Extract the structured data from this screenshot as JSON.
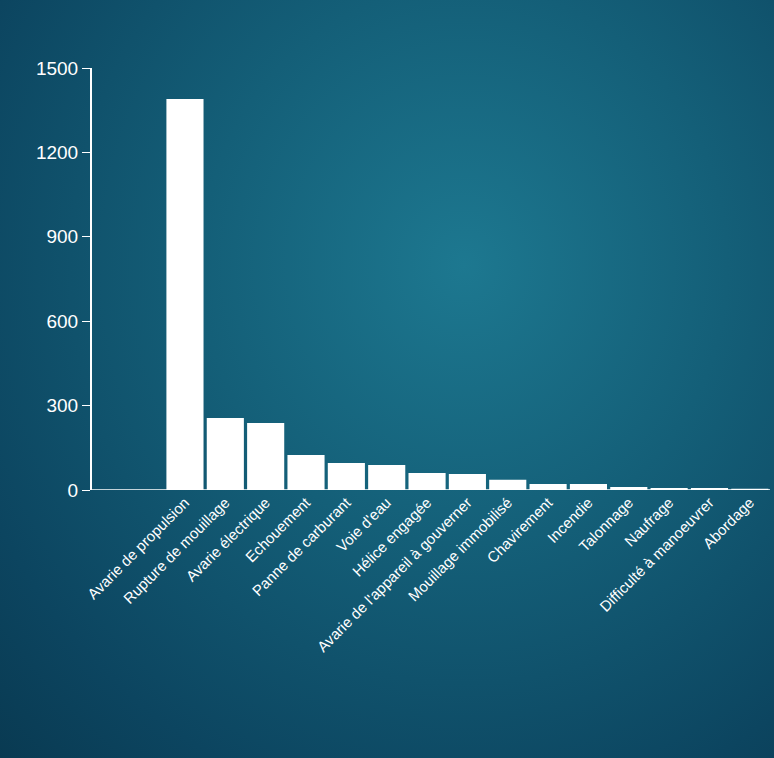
{
  "chart_data": {
    "type": "bar",
    "categories": [
      "Avarie de propulsion",
      "Rupture de mouillage",
      "Avarie électrique",
      "Echouement",
      "Panne de carburant",
      "Voie d'eau",
      "Hélice engagée",
      "Avarie de l'appareil à gouverner",
      "Mouillage immobilisé",
      "Chavirement",
      "Incendie",
      "Talonnage",
      "Naufrage",
      "Difficulté à manoeuvrer",
      "Abordage"
    ],
    "values": [
      1390,
      256,
      238,
      124,
      96,
      89,
      60,
      57,
      36,
      21,
      21,
      11,
      7,
      7,
      4
    ],
    "color": "#ffffff",
    "ylim": [
      0,
      1500
    ],
    "yticks": [
      0,
      300,
      600,
      900,
      1200,
      1500
    ],
    "grid": false
  }
}
